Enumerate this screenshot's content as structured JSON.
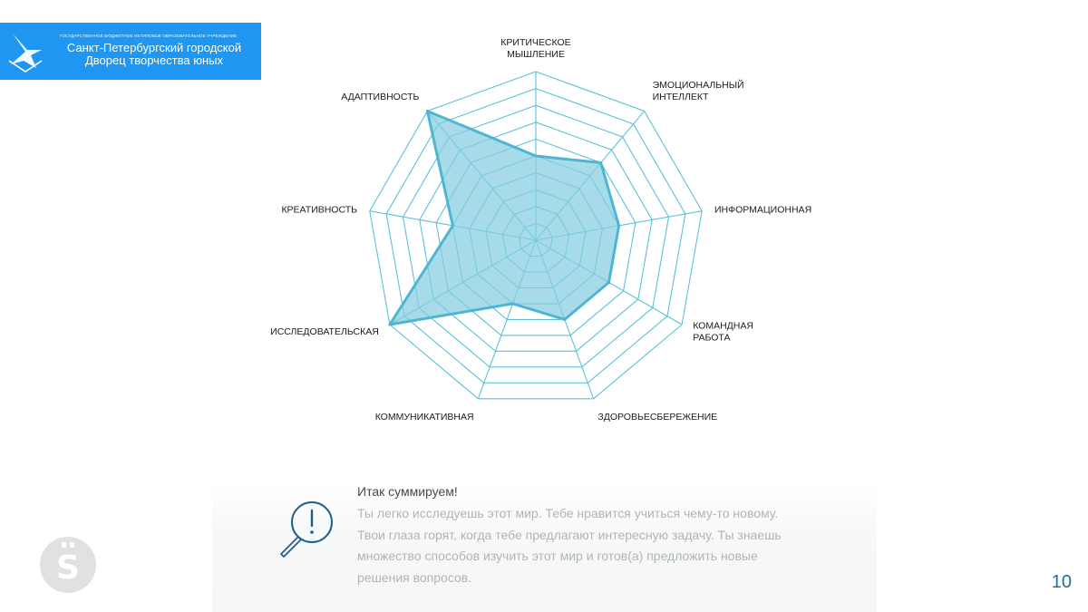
{
  "logo": {
    "small_text": "ГОСУДАРСТВЕННОЕ БЮДЖЕТНОЕ НЕТИПОВОЕ ОБРАЗОВАТЕЛЬНОЕ УЧРЕЖДЕНИЕ",
    "line1": "Санкт-Петербургский городской",
    "line2": "Дворец творчества юных",
    "bg_color": "#1e96f2",
    "icon": "bird-emblem-icon"
  },
  "chart_data": {
    "type": "radar",
    "title": "",
    "axes": [
      {
        "label_lines": [
          "КРИТИЧЕСКОЕ",
          "МЫШЛЕНИЕ"
        ]
      },
      {
        "label_lines": [
          "ЭМОЦИОНАЛЬНЫЙ",
          "ИНТЕЛЛЕКТ"
        ]
      },
      {
        "label_lines": [
          "ИНФОРМАЦИОННАЯ"
        ]
      },
      {
        "label_lines": [
          "КОМАНДНАЯ",
          "РАБОТА"
        ]
      },
      {
        "label_lines": [
          "ЗДОРОВЬЕСБЕРЕЖЕНИЕ"
        ]
      },
      {
        "label_lines": [
          "КОММУНИКАТИВНАЯ"
        ]
      },
      {
        "label_lines": [
          "ИССЛЕДОВАТЕЛЬСКАЯ"
        ]
      },
      {
        "label_lines": [
          "КРЕАТИВНОСТЬ"
        ]
      },
      {
        "label_lines": [
          "АДАПТИВНОСТЬ"
        ]
      }
    ],
    "scale_max": 10,
    "rings": 10,
    "values": [
      5,
      6,
      5,
      5,
      5,
      4,
      10,
      5,
      10
    ],
    "grid_color": "#5cc2d6",
    "fill_color": "#87cde0",
    "line_color": "#4fb6d2"
  },
  "summary": {
    "title": "Итак суммируем!",
    "lines": [
      "Ты легко исследуешь этот мир. Тебе нравится учиться чему-то новому.",
      "Твои глаза горят, когда тебе предлагают интересную задачу. Ты знаешь",
      "множество способов изучить этот мир и готов(а) предложить новые",
      "решения вопросов."
    ],
    "icon": "exclamation-magnifier-icon"
  },
  "badge": {
    "letter": "S",
    "icon": "s-umlaut-logo-icon"
  },
  "page_number": "10"
}
